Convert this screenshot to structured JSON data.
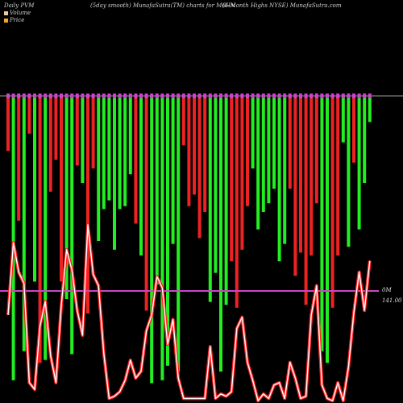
{
  "header": {
    "left": "Daily PVM",
    "middle": "(5day smooth) MunafaSutra(TM) charts for M6HN",
    "right": "(6-Month Highs NYSE) MunafaSutra.com"
  },
  "legend": [
    {
      "label": "Volume",
      "color": "#e8c9a8"
    },
    {
      "label": "Price",
      "color": "#f5a623"
    }
  ],
  "colors": {
    "background": "#000000",
    "up_bar": "#22ee22",
    "down_bar": "#ee2222",
    "price_line": "#ff2020",
    "ref_line": "#cc44cc",
    "top_axis": "#9a9a9a"
  },
  "chart_data": {
    "type": "bar",
    "title": "(5day smooth) MunafaSutra(TM) charts for M6HN",
    "series": [
      {
        "name": "Volume",
        "direction": [
          "down",
          "up",
          "down",
          "up",
          "down",
          "up",
          "down",
          "up",
          "down",
          "down",
          "down",
          "up",
          "up",
          "down",
          "up",
          "down",
          "down",
          "up",
          "up",
          "up",
          "up",
          "up",
          "up",
          "up",
          "down",
          "up",
          "down",
          "up",
          "up",
          "up",
          "up",
          "up",
          "up",
          "down",
          "down",
          "down",
          "down",
          "down",
          "up",
          "up",
          "up",
          "up",
          "down",
          "down",
          "down",
          "down",
          "up",
          "up",
          "up",
          "up",
          "up",
          "up",
          "up",
          "down",
          "down",
          "down",
          "down",
          "down",
          "down",
          "up",
          "up",
          "down",
          "down",
          "up",
          "up",
          "down",
          "up",
          "up",
          "up"
        ],
        "values": [
          0.19,
          0.98,
          0.43,
          0.88,
          0.13,
          0.64,
          0.92,
          0.91,
          0.33,
          0.22,
          0.64,
          0.7,
          0.89,
          0.24,
          0.3,
          0.75,
          0.25,
          0.5,
          0.39,
          0.36,
          0.53,
          0.39,
          0.38,
          0.27,
          0.44,
          0.55,
          0.74,
          0.99,
          0.65,
          0.98,
          0.93,
          0.51,
          0.95,
          0.17,
          0.38,
          0.34,
          0.49,
          0.4,
          0.71,
          0.61,
          0.95,
          0.72,
          0.57,
          0.73,
          0.53,
          0.38,
          0.25,
          0.46,
          0.4,
          0.37,
          0.32,
          0.57,
          0.51,
          0.32,
          0.62,
          0.54,
          0.72,
          0.55,
          0.37,
          0.88,
          0.92,
          0.73,
          0.55,
          0.16,
          0.52,
          0.23,
          0.46,
          0.3,
          0.09
        ]
      },
      {
        "name": "Price",
        "values": [
          0.39,
          0.71,
          0.58,
          0.53,
          0.09,
          0.06,
          0.34,
          0.45,
          0.21,
          0.09,
          0.43,
          0.68,
          0.59,
          0.41,
          0.3,
          0.79,
          0.57,
          0.52,
          0.22,
          0.02,
          0.03,
          0.05,
          0.1,
          0.19,
          0.11,
          0.14,
          0.32,
          0.39,
          0.56,
          0.51,
          0.26,
          0.37,
          0.11,
          0.02,
          0.02,
          0.02,
          0.02,
          0.02,
          0.25,
          0.02,
          0.04,
          0.03,
          0.05,
          0.33,
          0.38,
          0.18,
          0.1,
          0.01,
          0.04,
          0.02,
          0.08,
          0.09,
          0.02,
          0.18,
          0.11,
          0.02,
          0.03,
          0.39,
          0.52,
          0.08,
          0.02,
          0.01,
          0.09,
          0.01,
          0.16,
          0.4,
          0.58,
          0.41,
          0.63
        ]
      }
    ],
    "ref_line": {
      "labels": [
        "0M",
        "141.00"
      ]
    }
  }
}
